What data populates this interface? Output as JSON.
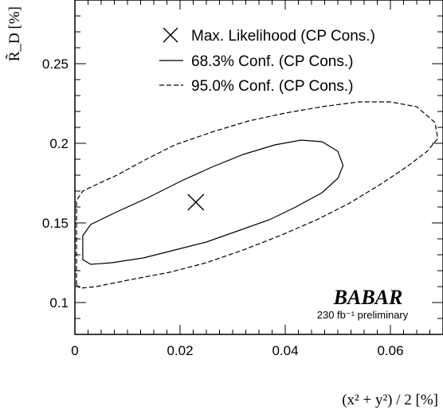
{
  "chart_data": {
    "type": "contour",
    "xlabel": "(x² + y²) / 2 [%]",
    "ylabel": "R̃_D [%]",
    "xlim": [
      0,
      0.07
    ],
    "ylim": [
      0.08,
      0.29
    ],
    "x_ticks": [
      0,
      0.02,
      0.04,
      0.06
    ],
    "x_tick_labels": [
      "0",
      "0.02",
      "0.04",
      "0.06"
    ],
    "y_ticks": [
      0.1,
      0.15,
      0.2,
      0.25
    ],
    "y_tick_labels": [
      "0.1",
      "0.15",
      "0.2",
      "0.25"
    ],
    "grid": false,
    "legend_position": "top-right",
    "series": [
      {
        "name": "Max. Likelihood (CP Cons.)",
        "kind": "marker",
        "marker": "x",
        "points": [
          [
            0.023,
            0.163
          ]
        ]
      },
      {
        "name": "68.3% Conf. (CP Cons.)",
        "kind": "contour",
        "linestyle": "solid",
        "points": [
          [
            0.0015,
            0.132
          ],
          [
            0.0015,
            0.142
          ],
          [
            0.003,
            0.149
          ],
          [
            0.008,
            0.157
          ],
          [
            0.014,
            0.166
          ],
          [
            0.02,
            0.176
          ],
          [
            0.026,
            0.185
          ],
          [
            0.032,
            0.193
          ],
          [
            0.038,
            0.199
          ],
          [
            0.043,
            0.202
          ],
          [
            0.047,
            0.201
          ],
          [
            0.05,
            0.195
          ],
          [
            0.051,
            0.186
          ],
          [
            0.05,
            0.178
          ],
          [
            0.047,
            0.169
          ],
          [
            0.042,
            0.16
          ],
          [
            0.037,
            0.152
          ],
          [
            0.031,
            0.145
          ],
          [
            0.025,
            0.138
          ],
          [
            0.019,
            0.133
          ],
          [
            0.013,
            0.128
          ],
          [
            0.007,
            0.125
          ],
          [
            0.003,
            0.124
          ],
          [
            0.0015,
            0.127
          ],
          [
            0.0015,
            0.132
          ]
        ]
      },
      {
        "name": "95.0% Conf. (CP Cons.)",
        "kind": "contour",
        "linestyle": "dashed",
        "points": [
          [
            0.0003,
            0.111
          ],
          [
            0.0003,
            0.164
          ],
          [
            0.0015,
            0.17
          ],
          [
            0.004,
            0.174
          ],
          [
            0.008,
            0.18
          ],
          [
            0.013,
            0.189
          ],
          [
            0.019,
            0.199
          ],
          [
            0.026,
            0.207
          ],
          [
            0.033,
            0.214
          ],
          [
            0.04,
            0.219
          ],
          [
            0.047,
            0.223
          ],
          [
            0.054,
            0.226
          ],
          [
            0.06,
            0.226
          ],
          [
            0.065,
            0.223
          ],
          [
            0.0685,
            0.213
          ],
          [
            0.069,
            0.203
          ],
          [
            0.067,
            0.195
          ],
          [
            0.063,
            0.185
          ],
          [
            0.058,
            0.174
          ],
          [
            0.052,
            0.162
          ],
          [
            0.046,
            0.152
          ],
          [
            0.039,
            0.142
          ],
          [
            0.032,
            0.133
          ],
          [
            0.025,
            0.125
          ],
          [
            0.018,
            0.119
          ],
          [
            0.01,
            0.114
          ],
          [
            0.004,
            0.11
          ],
          [
            0.001,
            0.109
          ],
          [
            0.0003,
            0.111
          ]
        ]
      }
    ],
    "annotations": {
      "brand": "BABAR",
      "brand_sub": "230 fb⁻¹ preliminary"
    }
  }
}
